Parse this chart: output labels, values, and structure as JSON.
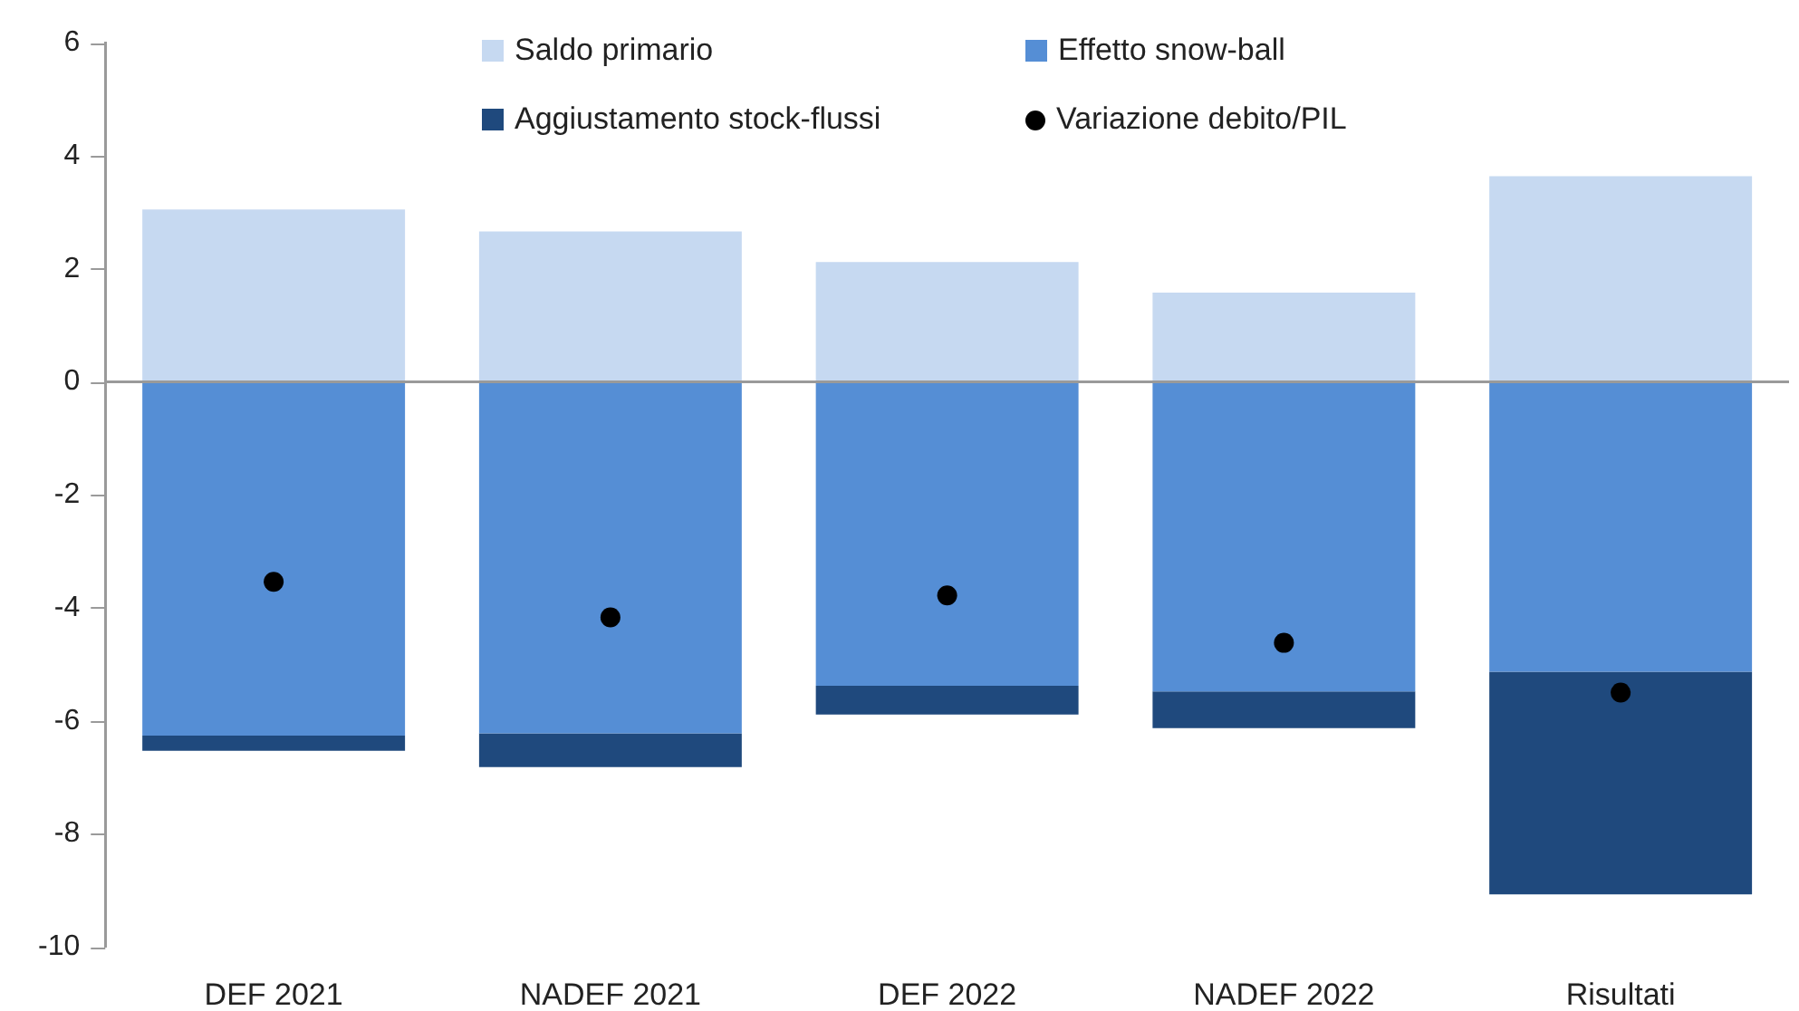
{
  "chart_data": {
    "type": "bar",
    "stacked": true,
    "categories": [
      "DEF 2021",
      "NADEF 2021",
      "DEF 2022",
      "NADEF 2022",
      "Risultati"
    ],
    "series": [
      {
        "name": "Saldo primario",
        "color": "#c6d9f1",
        "values": [
          3.05,
          2.66,
          2.12,
          1.58,
          3.64
        ]
      },
      {
        "name": "Effetto snow-ball",
        "color": "#558ed5",
        "values": [
          -6.26,
          -6.22,
          -5.38,
          -5.48,
          -5.13
        ]
      },
      {
        "name": "Aggiustamento stock-flussi",
        "color": "#1f497d",
        "values": [
          -0.27,
          -0.6,
          -0.51,
          -0.65,
          -3.94
        ]
      },
      {
        "name": "Variazione debito/PIL",
        "type": "scatter",
        "color": "#000000",
        "x": [
          "DEF 2021",
          "NADEF 2021",
          "DEF 2022",
          "NADEF 2022",
          "Risultati"
        ],
        "values": [
          -3.54,
          -4.17,
          -3.78,
          -4.62,
          -5.5
        ]
      }
    ],
    "ylim": [
      -10,
      6
    ],
    "yticks": [
      -10,
      -8,
      -6,
      -4,
      -2,
      0,
      2,
      4,
      6
    ],
    "grid": false,
    "legend": "top",
    "marker": "circle",
    "ref_lines": [
      {
        "axis": "y",
        "value": 0,
        "color": "#9a9a9a"
      }
    ]
  }
}
